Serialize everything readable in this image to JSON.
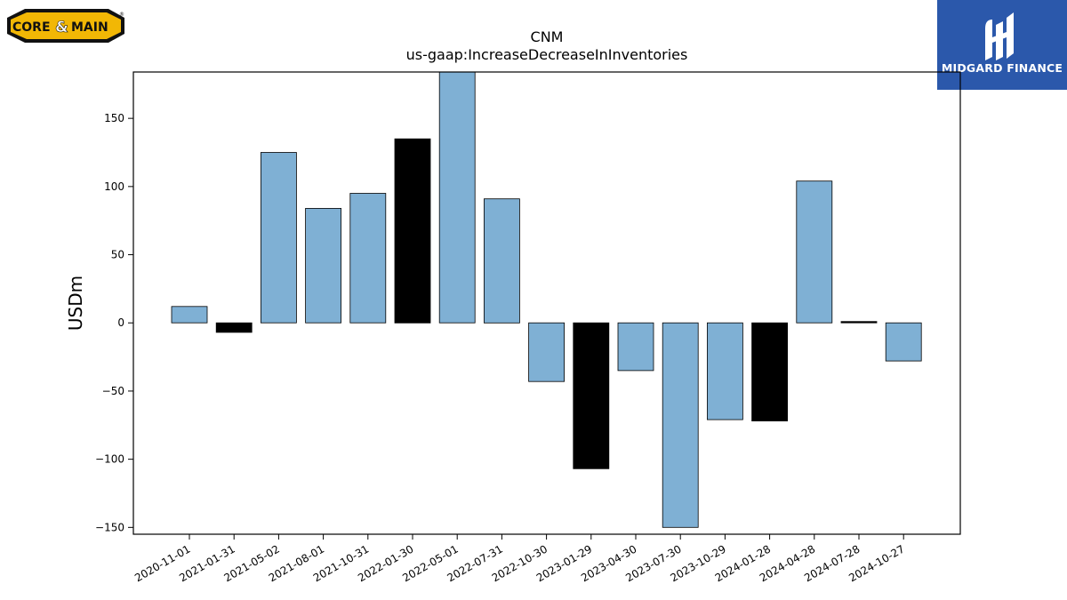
{
  "branding": {
    "company_logo_text_left": "CORE",
    "company_logo_amp": "&",
    "company_logo_text_right": "MAIN",
    "company_logo_reg": "®",
    "publisher_name": "MIDGARD FINANCE",
    "colors": {
      "company_yellow": "#f2b705",
      "publisher_blue": "#2b58ab"
    }
  },
  "chart_data": {
    "type": "bar",
    "title": "CNM",
    "subtitle": "us-gaap:IncreaseDecreaseInInventories",
    "xlabel": "",
    "ylabel": "USDm",
    "ylim": [
      -155,
      184
    ],
    "yticks": [
      -150,
      -100,
      -50,
      0,
      50,
      100,
      150
    ],
    "grid": false,
    "categories": [
      "2020-11-01",
      "2021-01-31",
      "2021-05-02",
      "2021-08-01",
      "2021-10-31",
      "2022-01-30",
      "2022-05-01",
      "2022-07-31",
      "2022-10-30",
      "2023-01-29",
      "2023-04-30",
      "2023-07-30",
      "2023-10-29",
      "2024-01-28",
      "2024-04-28",
      "2024-07-28",
      "2024-10-27"
    ],
    "values": [
      12,
      -7,
      125,
      84,
      95,
      135,
      184,
      91,
      -43,
      -107,
      -35,
      -150,
      -71,
      -72,
      104,
      1,
      -28
    ],
    "bar_colors": [
      "#7fb0d4",
      "#000000",
      "#7fb0d4",
      "#7fb0d4",
      "#7fb0d4",
      "#000000",
      "#7fb0d4",
      "#7fb0d4",
      "#7fb0d4",
      "#000000",
      "#7fb0d4",
      "#7fb0d4",
      "#7fb0d4",
      "#000000",
      "#7fb0d4",
      "#000000",
      "#7fb0d4"
    ]
  }
}
